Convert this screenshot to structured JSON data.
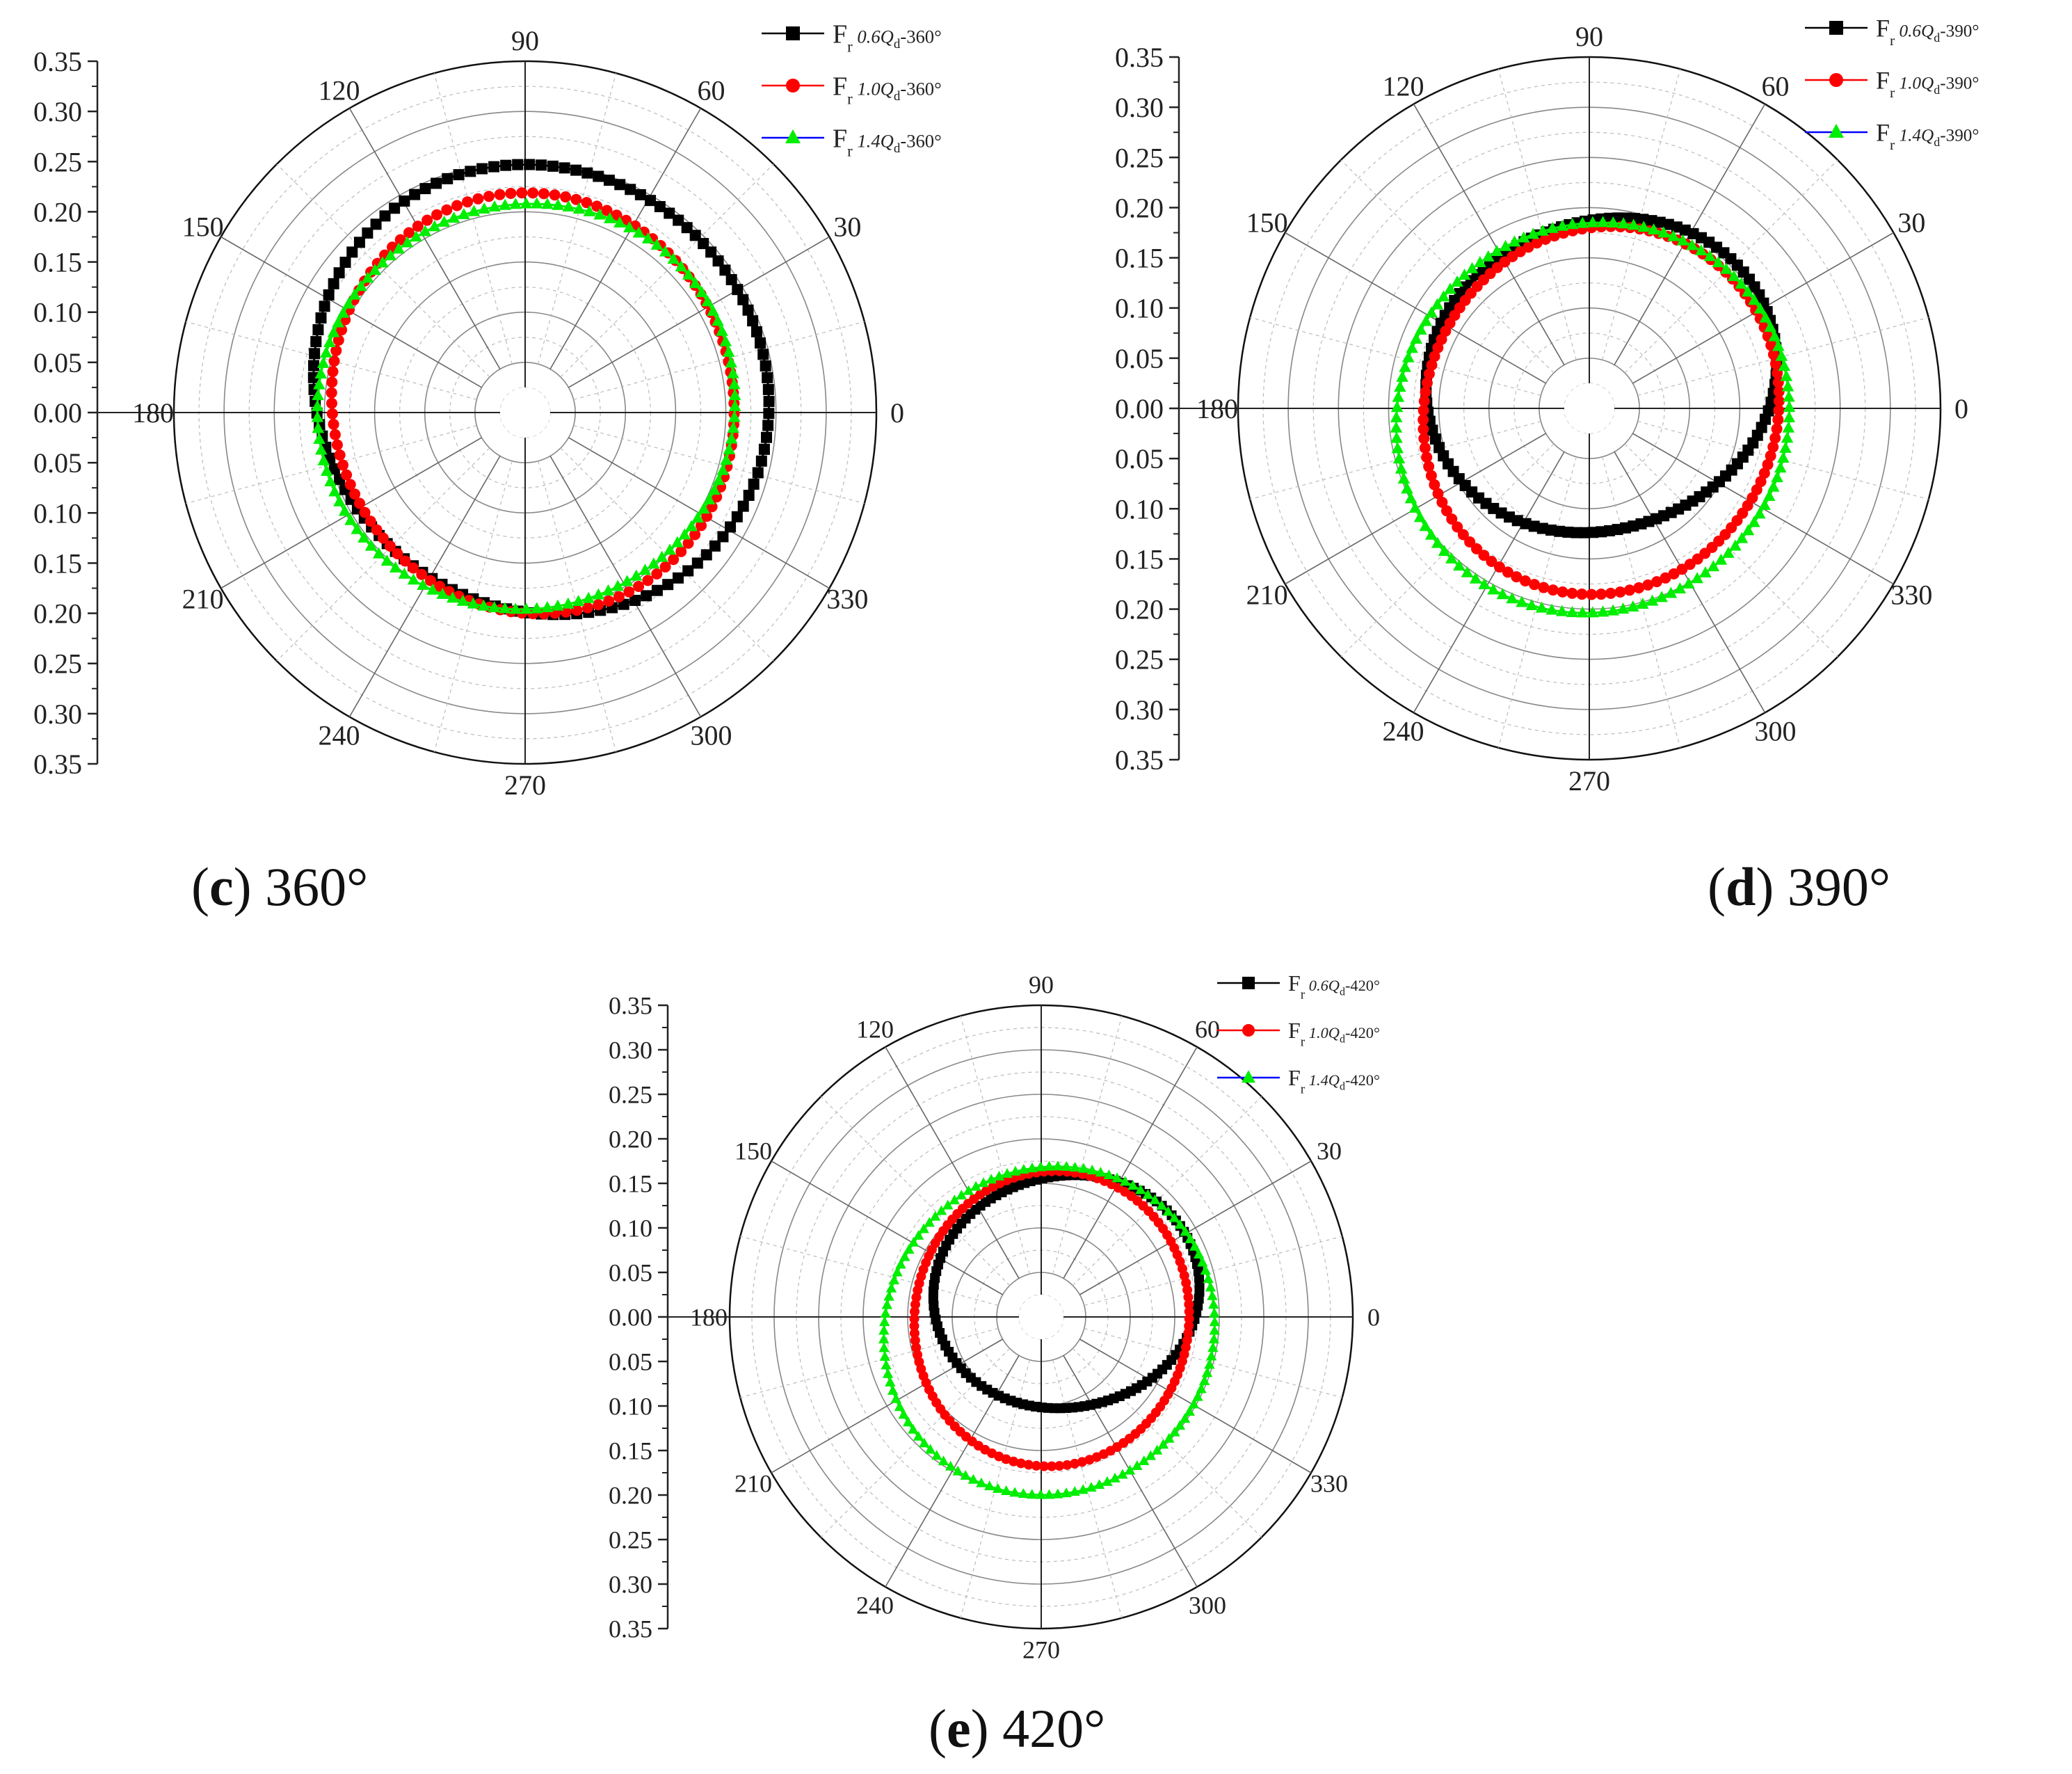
{
  "chart_data": [
    {
      "type": "polar-scatter",
      "panel": "c",
      "caption_letter": "c",
      "caption_text": " 360°",
      "radial_unit": "",
      "r_ticks": [
        "0.35",
        "0.30",
        "0.25",
        "0.20",
        "0.15",
        "0.10",
        "0.05",
        "0.00",
        "0.05",
        "0.10",
        "0.15",
        "0.20",
        "0.25",
        "0.30",
        "0.35"
      ],
      "angle_ticks": [
        "0",
        "30",
        "60",
        "90",
        "120",
        "150",
        "180",
        "210",
        "240",
        "270",
        "300",
        "330"
      ],
      "rlim": [
        0,
        0.35
      ],
      "series": [
        {
          "name": "Fr 0.6Qd-360°",
          "label_main": "F",
          "label_sub": "r",
          "label_q": "0.6",
          "label_tail": "-360°",
          "color": "#000000",
          "marker": "square",
          "shape": {
            "base": 0.225,
            "a1": 0.028,
            "p1": 55,
            "a2": 0.008,
            "p2": 140
          }
        },
        {
          "name": "Fr 1.0Qd-360°",
          "label_main": "F",
          "label_sub": "r",
          "label_q": "1.0",
          "label_tail": "-360°",
          "color": "#ff0000",
          "marker": "circle",
          "shape": {
            "base": 0.205,
            "a1": 0.012,
            "p1": 50,
            "a2": 0.006,
            "p2": 110
          }
        },
        {
          "name": "Fr 1.4Qd-360°",
          "label_main": "F",
          "label_sub": "r",
          "label_q": "1.4",
          "label_tail": "-360°",
          "color": "#00ee00",
          "marker": "triangle",
          "shape": {
            "base": 0.205,
            "a1": 0.006,
            "p1": 80,
            "a2": 0.004,
            "p2": 200
          }
        }
      ]
    },
    {
      "type": "polar-scatter",
      "panel": "d",
      "caption_letter": "d",
      "caption_text": " 390°",
      "r_ticks": [
        "0.35",
        "0.30",
        "0.25",
        "0.20",
        "0.15",
        "0.10",
        "0.05",
        "0.00",
        "0.05",
        "0.10",
        "0.15",
        "0.20",
        "0.25",
        "0.30",
        "0.35"
      ],
      "angle_ticks": [
        "0",
        "30",
        "60",
        "90",
        "120",
        "150",
        "180",
        "210",
        "240",
        "270",
        "300",
        "330"
      ],
      "rlim": [
        0,
        0.35
      ],
      "series": [
        {
          "name": "Fr 0.6Qd-390°",
          "label_main": "F",
          "label_sub": "r",
          "label_q": "0.6",
          "label_tail": "-390°",
          "color": "#000000",
          "marker": "square",
          "shape": {
            "base": 0.165,
            "a1": 0.035,
            "p1": 70,
            "a2": 0.012,
            "p2": 20
          }
        },
        {
          "name": "Fr 1.0Qd-390°",
          "label_main": "F",
          "label_sub": "r",
          "label_q": "1.0",
          "label_tail": "-390°",
          "color": "#ff0000",
          "marker": "circle",
          "shape": {
            "base": 0.18,
            "a1": 0.012,
            "p1": 350,
            "a2": 0.006,
            "p2": 60
          }
        },
        {
          "name": "Fr 1.4Qd-390°",
          "label_main": "F",
          "label_sub": "r",
          "label_q": "1.4",
          "label_tail": "-390°",
          "color": "#00ee00",
          "marker": "triangle",
          "shape": {
            "base": 0.195,
            "a1": 0.01,
            "p1": 290,
            "a2": 0.004,
            "p2": 40
          }
        }
      ]
    },
    {
      "type": "polar-scatter",
      "panel": "e",
      "caption_letter": "e",
      "caption_text": " 420°",
      "r_ticks": [
        "0.35",
        "0.30",
        "0.25",
        "0.20",
        "0.15",
        "0.10",
        "0.05",
        "0.00",
        "0.05",
        "0.10",
        "0.15",
        "0.20",
        "0.25",
        "0.30",
        "0.35"
      ],
      "angle_ticks": [
        "0",
        "30",
        "60",
        "90",
        "120",
        "150",
        "180",
        "210",
        "240",
        "270",
        "300",
        "330"
      ],
      "rlim": [
        0,
        0.35
      ],
      "series": [
        {
          "name": "Fr 0.6Qd-420°",
          "label_main": "F",
          "label_sub": "r",
          "label_q": "0.6",
          "label_tail": "-420°",
          "color": "#000000",
          "marker": "square",
          "shape": {
            "base": 0.14,
            "a1": 0.04,
            "p1": 45,
            "a2": 0.01,
            "p2": 10
          }
        },
        {
          "name": "Fr 1.0Qd-420°",
          "label_main": "F",
          "label_sub": "r",
          "label_q": "1.0",
          "label_tail": "-420°",
          "color": "#ff0000",
          "marker": "circle",
          "shape": {
            "base": 0.16,
            "a1": 0.012,
            "p1": 350,
            "a2": 0.006,
            "p2": 80
          }
        },
        {
          "name": "Fr 1.4Qd-420°",
          "label_main": "F",
          "label_sub": "r",
          "label_q": "1.4",
          "label_tail": "-420°",
          "color": "#00ee00",
          "marker": "triangle",
          "shape": {
            "base": 0.185,
            "a1": 0.018,
            "p1": 300,
            "a2": 0.004,
            "p2": 40
          }
        }
      ]
    }
  ]
}
